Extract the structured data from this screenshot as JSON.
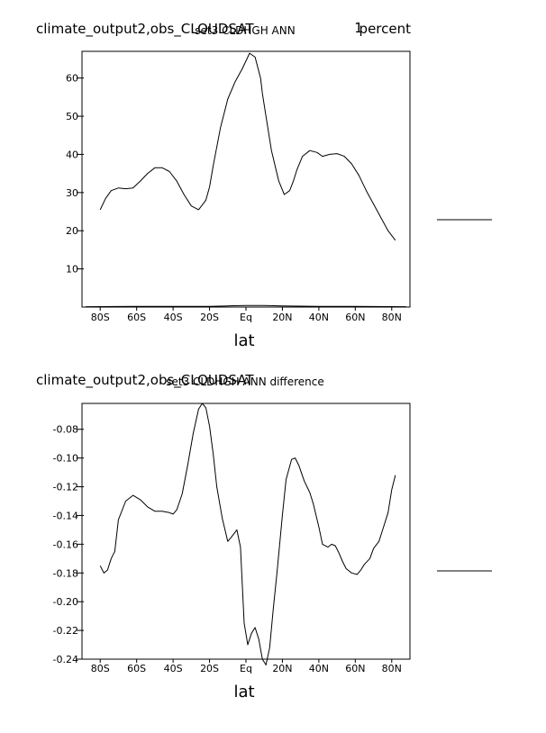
{
  "chart_data": [
    {
      "type": "line",
      "title": "climate_output2,obs_CLOUDSAT",
      "subtitle": "set3 CLDHGH ANN",
      "units": "percent",
      "units_prefix": "1",
      "xlabel": "lat",
      "ylabel": "",
      "xlim": [
        -90,
        90
      ],
      "ylim": [
        0,
        67
      ],
      "x_ticks": [
        {
          "value": -80,
          "label": "80S"
        },
        {
          "value": -60,
          "label": "60S"
        },
        {
          "value": -40,
          "label": "40S"
        },
        {
          "value": -20,
          "label": "20S"
        },
        {
          "value": 0,
          "label": "Eq"
        },
        {
          "value": 20,
          "label": "20N"
        },
        {
          "value": 40,
          "label": "40N"
        },
        {
          "value": 60,
          "label": "60N"
        },
        {
          "value": 80,
          "label": "80N"
        }
      ],
      "y_ticks": [
        {
          "value": 10,
          "label": "10"
        },
        {
          "value": 20,
          "label": "20"
        },
        {
          "value": 30,
          "label": "30"
        },
        {
          "value": 40,
          "label": "40"
        },
        {
          "value": 50,
          "label": "50"
        },
        {
          "value": 60,
          "label": "60"
        }
      ],
      "grid": false,
      "legend_position": "right",
      "series": [
        {
          "color": "#000000",
          "x": [
            -80,
            -77,
            -74,
            -70,
            -66,
            -62,
            -58,
            -54,
            -50,
            -46,
            -42,
            -38,
            -34,
            -30,
            -26,
            -22,
            -20,
            -18,
            -14,
            -10,
            -6,
            -2,
            2,
            5,
            8,
            9,
            11,
            14,
            18,
            21,
            24,
            26,
            28,
            31,
            35,
            39,
            42,
            46,
            50,
            54,
            58,
            62,
            66,
            70,
            74,
            78,
            82
          ],
          "y": [
            25.5,
            28.5,
            30.5,
            31.2,
            31.0,
            31.2,
            33.0,
            35.0,
            36.5,
            36.5,
            35.5,
            33.0,
            29.5,
            26.5,
            25.5,
            28.0,
            31.5,
            37.0,
            47.0,
            54.5,
            59.0,
            62.5,
            66.5,
            65.5,
            60.0,
            56.0,
            50.0,
            41.0,
            33.0,
            29.5,
            30.5,
            33.0,
            36.0,
            39.5,
            41.0,
            40.5,
            39.5,
            40.0,
            40.2,
            39.5,
            37.5,
            34.5,
            30.5,
            27.0,
            23.5,
            20.0,
            17.5
          ]
        },
        {
          "color": "#000000",
          "x": [
            -88,
            -60,
            -40,
            -20,
            -10,
            0,
            10,
            20,
            40,
            60,
            88
          ],
          "y": [
            0.1,
            0.2,
            0.2,
            0.2,
            0.3,
            0.4,
            0.4,
            0.3,
            0.2,
            0.2,
            0.1
          ]
        }
      ]
    },
    {
      "type": "line",
      "title": "climate_output2,obs_CLOUDSAT",
      "subtitle": "set3 CLDHGH ANN difference",
      "units": "",
      "xlabel": "lat",
      "ylabel": "",
      "xlim": [
        -90,
        90
      ],
      "ylim": [
        -0.24,
        -0.062
      ],
      "x_ticks": [
        {
          "value": -80,
          "label": "80S"
        },
        {
          "value": -60,
          "label": "60S"
        },
        {
          "value": -40,
          "label": "40S"
        },
        {
          "value": -20,
          "label": "20S"
        },
        {
          "value": 0,
          "label": "Eq"
        },
        {
          "value": 20,
          "label": "20N"
        },
        {
          "value": 40,
          "label": "40N"
        },
        {
          "value": 60,
          "label": "60N"
        },
        {
          "value": 80,
          "label": "80N"
        }
      ],
      "y_ticks": [
        {
          "value": -0.08,
          "label": "-0.08"
        },
        {
          "value": -0.1,
          "label": "-0.10"
        },
        {
          "value": -0.12,
          "label": "-0.12"
        },
        {
          "value": -0.14,
          "label": "-0.14"
        },
        {
          "value": -0.16,
          "label": "-0.16"
        },
        {
          "value": -0.18,
          "label": "-0.18"
        },
        {
          "value": -0.2,
          "label": "-0.20"
        },
        {
          "value": -0.22,
          "label": "-0.22"
        },
        {
          "value": -0.24,
          "label": "-0.24"
        }
      ],
      "grid": false,
      "legend_position": "right",
      "series": [
        {
          "color": "#000000",
          "x": [
            -80,
            -78,
            -76,
            -74,
            -72,
            -70,
            -66,
            -62,
            -58,
            -54,
            -50,
            -46,
            -42,
            -40,
            -38,
            -35,
            -32,
            -29,
            -26,
            -24,
            -22,
            -20,
            -18,
            -16,
            -13,
            -10,
            -8,
            -5,
            -3,
            -1,
            1,
            3,
            5,
            7,
            9,
            11,
            13,
            15,
            17,
            20,
            22,
            25,
            27,
            29,
            32,
            35,
            37,
            40,
            42,
            45,
            47,
            49,
            51,
            53,
            55,
            58,
            61,
            63,
            65,
            68,
            70,
            73,
            75,
            78,
            80,
            82
          ],
          "y": [
            -0.175,
            -0.18,
            -0.178,
            -0.17,
            -0.165,
            -0.143,
            -0.13,
            -0.126,
            -0.129,
            -0.134,
            -0.137,
            -0.137,
            -0.138,
            -0.139,
            -0.136,
            -0.125,
            -0.105,
            -0.083,
            -0.066,
            -0.062,
            -0.065,
            -0.078,
            -0.097,
            -0.12,
            -0.142,
            -0.158,
            -0.155,
            -0.15,
            -0.162,
            -0.215,
            -0.23,
            -0.222,
            -0.218,
            -0.226,
            -0.24,
            -0.244,
            -0.232,
            -0.205,
            -0.18,
            -0.14,
            -0.115,
            -0.101,
            -0.1,
            -0.105,
            -0.116,
            -0.124,
            -0.132,
            -0.148,
            -0.16,
            -0.162,
            -0.16,
            -0.161,
            -0.166,
            -0.172,
            -0.177,
            -0.18,
            -0.181,
            -0.178,
            -0.174,
            -0.17,
            -0.163,
            -0.158,
            -0.15,
            -0.138,
            -0.122,
            -0.112
          ]
        }
      ]
    }
  ]
}
